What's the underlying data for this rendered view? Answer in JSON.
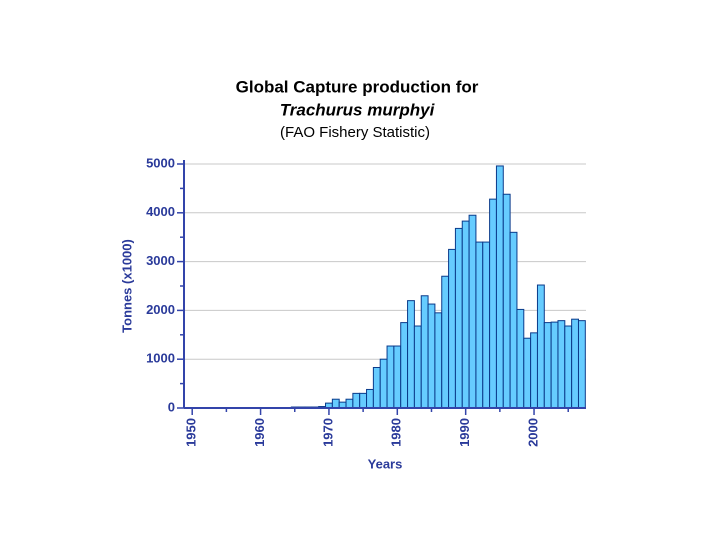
{
  "chart_data": {
    "type": "bar",
    "title": "Global Capture production for",
    "subtitle": "Trachurus murphyi",
    "source": "(FAO Fishery Statistic)",
    "xlabel": "Years",
    "ylabel": "Tonnes (x1000)",
    "x": [
      1965,
      1966,
      1967,
      1968,
      1969,
      1970,
      1971,
      1972,
      1973,
      1974,
      1975,
      1976,
      1977,
      1978,
      1979,
      1980,
      1981,
      1982,
      1983,
      1984,
      1985,
      1986,
      1987,
      1988,
      1989,
      1990,
      1991,
      1992,
      1993,
      1994,
      1995,
      1996,
      1997,
      1998,
      1999,
      2000,
      2001,
      2002,
      2003,
      2004,
      2005,
      2006,
      2007
    ],
    "values": [
      20,
      20,
      20,
      20,
      30,
      100,
      180,
      120,
      180,
      300,
      300,
      380,
      830,
      1000,
      1270,
      1270,
      1750,
      2200,
      1680,
      2300,
      2130,
      1950,
      2700,
      3250,
      3680,
      3830,
      3950,
      3400,
      3400,
      4280,
      4960,
      4380,
      3600,
      2020,
      1430,
      1540,
      2520,
      1750,
      1760,
      1790,
      1680,
      1820,
      1790
    ],
    "color": "#66ccff",
    "edgecolor": "#0a3a8a",
    "xlim": [
      1948.8,
      2007.6
    ],
    "xticks": [
      1950,
      1960,
      1970,
      1980,
      1990,
      2000
    ],
    "xminor": [
      1955,
      1965,
      1975,
      1985,
      1995,
      2005
    ],
    "ylim": [
      0,
      5000
    ],
    "yticks": [
      0,
      1000,
      2000,
      3000,
      4000,
      5000
    ],
    "yminor": [
      500,
      1500,
      2500,
      3500,
      4500
    ],
    "grid": true
  }
}
